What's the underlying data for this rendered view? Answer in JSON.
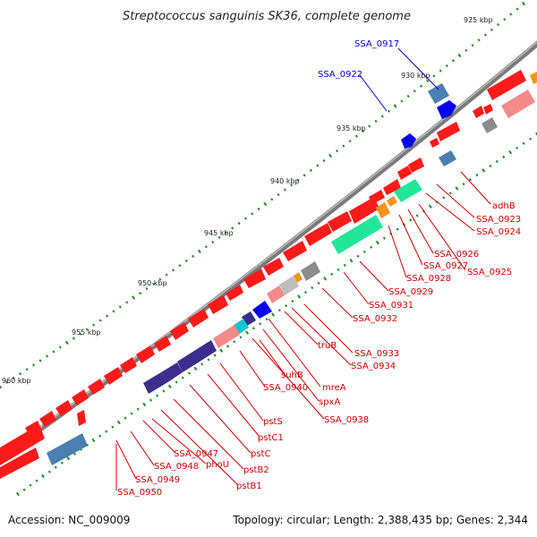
{
  "title": "Streptococcus sanguinis SK36, complete genome",
  "accession": "Accession: NC_009009",
  "summary": "Topology: circular; Length: 2,388,435 bp; Genes: 2,344",
  "scale_labels": [
    "925 kbp",
    "930 kbp",
    "935 kbp",
    "940 kbp",
    "945 kbp",
    "950 kbp",
    "955 kbp",
    "960 kbp"
  ],
  "gene_labels": {
    "blue": [
      "SSA_0917",
      "SSA_0922"
    ],
    "red": [
      "adhB",
      "SSA_0923",
      "SSA_0924",
      "SSA_0926",
      "SSA_0927",
      "SSA_0925",
      "SSA_0928",
      "SSA_0929",
      "SSA_0931",
      "SSA_0932",
      "truB",
      "SSA_0933",
      "SSA_0934",
      "mreA",
      "suhB",
      "SSA_0940",
      "spxA",
      "SSA_0938",
      "pstS",
      "pstC1",
      "pstC",
      "pstB2",
      "pstB1",
      "phoU",
      "SSA_0947",
      "SSA_0948",
      "SSA_0949",
      "SSA_0950"
    ]
  },
  "colors": {
    "backbone": "#777777",
    "gene_red": "#ff1a1a",
    "gene_blue": "#0000ee",
    "steel_blue": "#4a7fb0",
    "aquamarine": "#22e59a",
    "slate_purple": "#3b2e8c",
    "salmon": "#f48a8a",
    "gray": "#8c8c8c",
    "orange": "#f59320",
    "cyan": "#16c4cc",
    "tick_green": "#1e8a1e",
    "label_red": "#cc0000",
    "label_blue": "#0000cc"
  }
}
